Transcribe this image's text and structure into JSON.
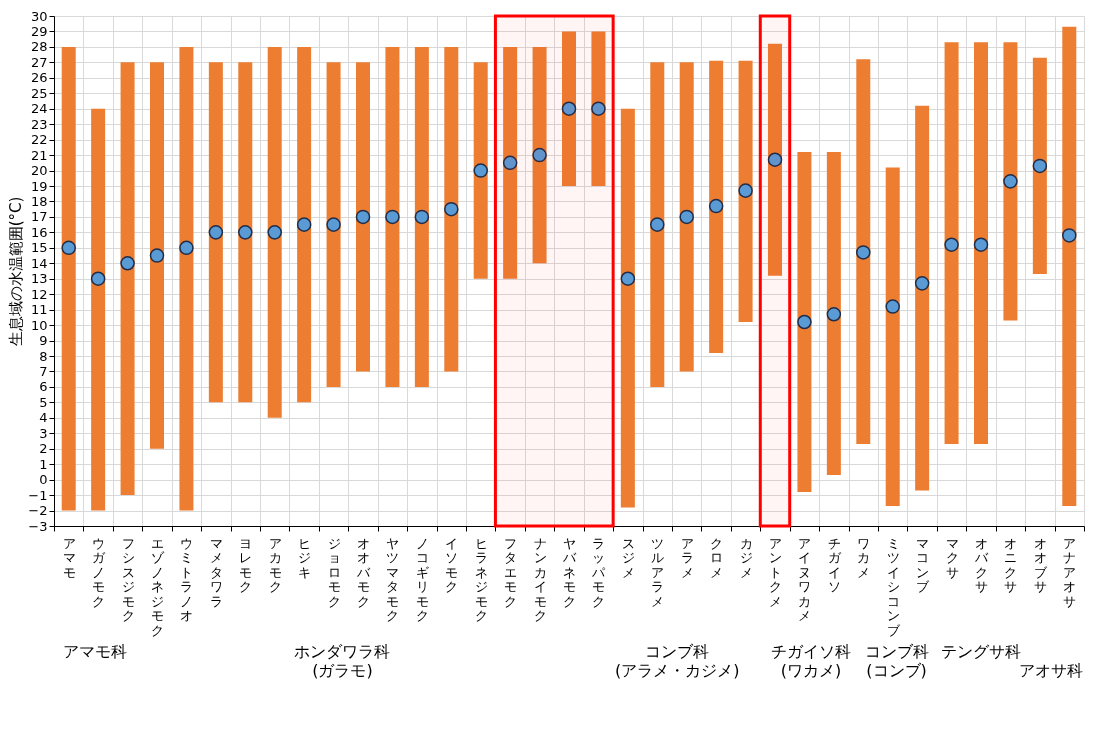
{
  "chart_data": {
    "type": "bar",
    "ylabel": "生息域の水温範囲(°C)",
    "categories": [
      "アマモ",
      "ウガノモク",
      "フシスジモク",
      "エゾノネジモク",
      "ウミトラノオ",
      "マメタワラ",
      "ヨレモク",
      "アカモク",
      "ヒジキ",
      "ジョロモク",
      "オオバモク",
      "ヤツマタモク",
      "ノコギリモク",
      "イソモク",
      "ヒラネジモク",
      "フタエモク",
      "ナンカイモク",
      "ヤバネモク",
      "ラッパモク",
      "スジメ",
      "ツルアラメ",
      "アラメ",
      "クロメ",
      "カジメ",
      "アントクメ",
      "アイヌワカメ",
      "チガイソ",
      "ワカメ",
      "ミツイシコンブ",
      "マコンブ",
      "マクサ",
      "オバクサ",
      "オニクサ",
      "オオブサ",
      "アナアオサ"
    ],
    "series": [
      {
        "color": "#ed7d31",
        "base": [
          -2,
          -2,
          -1,
          2,
          -2,
          5,
          5,
          4,
          5,
          6,
          7,
          6,
          6,
          7,
          13,
          13,
          14,
          19,
          19,
          -1.8,
          6,
          7,
          8.2,
          10.2,
          13.2,
          -0.8,
          0.3,
          2.3,
          -1.7,
          -0.7,
          2.3,
          2.3,
          10.3,
          13.3,
          -1.7
        ],
        "values": [
          30,
          26,
          28,
          25,
          30,
          22,
          22,
          24,
          23,
          21,
          20,
          22,
          22,
          21,
          14,
          15,
          14,
          10,
          10,
          25.8,
          21,
          20,
          18.9,
          16.9,
          15,
          22,
          20.9,
          24.9,
          21.9,
          24.9,
          26,
          26,
          18,
          14,
          31
        ]
      },
      {
        "type": "scatter",
        "color": "#5b9bd5",
        "x": [
          "アマモ",
          "ウガノモク",
          "フシスジモク",
          "エゾノネジモク",
          "ウミトラノオ",
          "マメタワラ",
          "ヨレモク",
          "アカモク",
          "ヒジキ",
          "ジョロモク",
          "オオバモク",
          "ヤツマタモク",
          "ノコギリモク",
          "イソモク",
          "ヒラネジモク",
          "フタエモク",
          "ナンカイモク",
          "ヤバネモク",
          "ラッパモク",
          "スジメ",
          "ツルアラメ",
          "アラメ",
          "クロメ",
          "カジメ",
          "アントクメ",
          "アイヌワカメ",
          "チガイソ",
          "ワカメ",
          "ミツイシコンブ",
          "マコンブ",
          "マクサ",
          "オバクサ",
          "オニクサ",
          "オオブサ",
          "アナアオサ"
        ],
        "values": [
          15,
          13,
          14,
          14.5,
          15,
          16,
          16,
          16,
          16.5,
          16.5,
          17,
          17,
          17,
          17.5,
          20,
          20.5,
          21,
          24,
          24,
          13,
          16.5,
          17,
          17.7,
          18.7,
          20.7,
          10.2,
          10.7,
          14.7,
          11.2,
          12.7,
          15.2,
          15.2,
          19.3,
          20.3,
          15.8
        ]
      }
    ],
    "ylim": [
      -3,
      30
    ],
    "yticks": [
      -3,
      -2,
      -1,
      0,
      1,
      2,
      3,
      4,
      5,
      6,
      7,
      8,
      9,
      10,
      11,
      12,
      13,
      14,
      15,
      16,
      17,
      18,
      19,
      20,
      21,
      22,
      23,
      24,
      25,
      26,
      27,
      28,
      29,
      30
    ],
    "grid": true,
    "marker": "circle",
    "bands": [
      {
        "axis": "x",
        "from": "フタエモク",
        "to": "ラッパモク",
        "color": "#ff0000"
      },
      {
        "axis": "x",
        "from": "アントクメ",
        "to": "アントクメ",
        "color": "#ff0000"
      }
    ],
    "annotations": [
      "アマモ科",
      "ホンダワラ科\n(ガラモ)",
      "コンブ科\n(アラメ・カジメ)",
      "チガイソ科\n(ワカメ)",
      "コンブ科\n(コンブ)",
      "テングサ科",
      "アオサ科"
    ]
  }
}
